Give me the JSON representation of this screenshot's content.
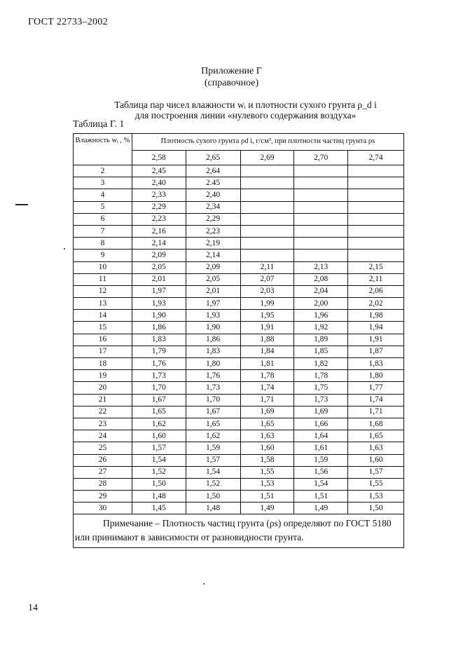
{
  "page_header": "ГОСТ 22733–2002",
  "appendix": {
    "title": "Приложение Г",
    "subtitle": "(справочное)"
  },
  "caption": {
    "line1": "Таблица пар чисел влажности wᵢ и плотности сухого грунта ρ_d i",
    "line2": "для построения линии «нулевого содержания воздуха»"
  },
  "table_label": "Таблица Г. 1",
  "table": {
    "col0_header": "Влажность wᵢ , %",
    "group_header": "Плотность сухого грунта ρd i, г/см³, при плотности частиц грунта ρs",
    "subheaders": [
      "2,58",
      "2,65",
      "2,69",
      "2,70",
      "2,74"
    ],
    "rows": [
      [
        "2",
        "2,45",
        "2,64",
        "",
        "",
        ""
      ],
      [
        "3",
        "2,40",
        "2.45",
        "",
        "",
        ""
      ],
      [
        "4",
        "2,33",
        "2,40",
        "",
        "",
        ""
      ],
      [
        "5",
        "2,29",
        "2,34",
        "",
        "",
        ""
      ],
      [
        "6",
        "2,23",
        "2,29",
        "",
        "",
        ""
      ],
      [
        "7",
        "2,16",
        "2,23",
        "",
        "",
        ""
      ],
      [
        "8",
        "2,14",
        "2,19",
        "",
        "",
        ""
      ],
      [
        "9",
        "2,09",
        "2,14",
        "",
        "",
        ""
      ],
      [
        "10",
        "2,05",
        "2,09",
        "2,11",
        "2,13",
        "2,15"
      ],
      [
        "11",
        "2,01",
        "2,05",
        "2,07",
        "2,08",
        "2,11"
      ],
      [
        "12",
        "1,97",
        "2,01",
        "2,03",
        "2,04",
        "2,06"
      ],
      [
        "13",
        "1,93",
        "1,97",
        "1,99",
        "2,00",
        "2,02"
      ],
      [
        "14",
        "1,90",
        "1,93",
        "1,95",
        "1,96",
        "1,98"
      ],
      [
        "15",
        "1,86",
        "1,90",
        "1,91",
        "1,92",
        "1,94"
      ],
      [
        "16",
        "1,83",
        "1,86",
        "1,88",
        "1,89",
        "1,91"
      ],
      [
        "17",
        "1,79",
        "1,83",
        "1,84",
        "1,85",
        "1,87"
      ],
      [
        "18",
        "1,76",
        "1,80",
        "1,81",
        "1,82",
        "1,83"
      ],
      [
        "19",
        "1,73",
        "1,76",
        "1,78",
        "1,78",
        "1,80"
      ],
      [
        "20",
        "1,70",
        "1,73",
        "1,74",
        "1,75",
        "1,77"
      ],
      [
        "21",
        "1,67",
        "1,70",
        "1,71",
        "1,73",
        "1,74"
      ],
      [
        "22",
        "1,65",
        "1,67",
        "1,69",
        "1,69",
        "1,71"
      ],
      [
        "23",
        "1,62",
        "1,65",
        "1,65",
        "1,66",
        "1,68"
      ],
      [
        "24",
        "1,60",
        "1,62",
        "1,63",
        "1,64",
        "1,65"
      ],
      [
        "25",
        "1,57",
        "1,59",
        "1,60",
        "1,61",
        "1,63"
      ],
      [
        "26",
        "1,54",
        "1,57",
        "1,58",
        "1,59",
        "1,60"
      ],
      [
        "27",
        "1,52",
        "1,54",
        "1,55",
        "1,56",
        "1,57"
      ],
      [
        "28",
        "1,50",
        "1,52",
        "1,53",
        "1,54",
        "1,55"
      ],
      [
        "29",
        "1,48",
        "1,50",
        "1,51",
        "1,51",
        "1,53"
      ],
      [
        "30",
        "1,45",
        "1,48",
        "1,49",
        "1,49",
        "1,50"
      ]
    ],
    "note": "Примечание – Плотность частиц грунта (ρs) определяют по ГОСТ 5180 или принимают в зависимости от разновидности грунта."
  },
  "page_number": "14"
}
